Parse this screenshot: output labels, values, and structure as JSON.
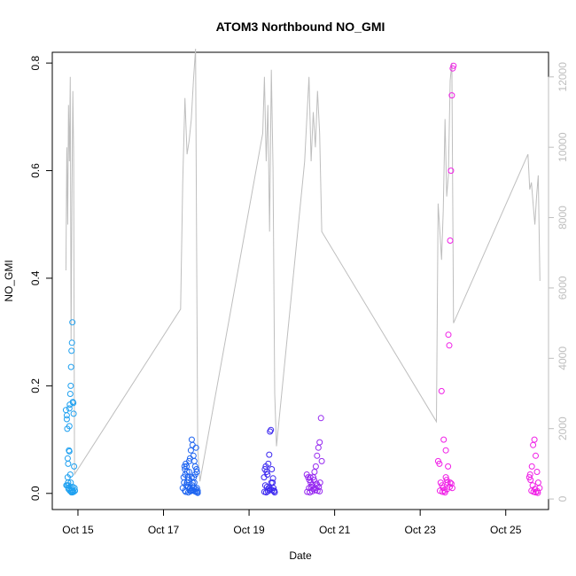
{
  "chart_data": {
    "type": "scatter",
    "title": "ATOM3 Northbound NO_GMI",
    "xlabel": "Date",
    "ylabel": "NO_GMI",
    "x_ticks": [
      "Oct 15",
      "Oct 17",
      "Oct 19",
      "Oct 21",
      "Oct 23",
      "Oct 25"
    ],
    "x_tick_days": [
      15,
      17,
      19,
      21,
      23,
      25
    ],
    "xlim": [
      14.4,
      26.0
    ],
    "ylim": [
      -0.03,
      0.82
    ],
    "y_ticks": [
      0.0,
      0.2,
      0.4,
      0.6,
      0.8
    ],
    "y_tick_labels": [
      "0.0",
      "0.2",
      "0.4",
      "0.6",
      "0.8"
    ],
    "y2lim": [
      -300,
      12700
    ],
    "y2_ticks": [
      0,
      2000,
      4000,
      6000,
      8000,
      10000,
      12000
    ],
    "y2_tick_labels": [
      "0",
      "2000",
      "4000",
      "6000",
      "8000",
      "10000",
      "12000"
    ],
    "colors": {
      "segment_start": "#1ea0f0",
      "segment_mid1": "#1e64f0",
      "segment_mid2": "#3c28f0",
      "segment_mid3": "#9628f0",
      "segment_end": "#f01ee6",
      "secondary_line": "#bebebe",
      "axis": "#000000"
    },
    "series": [
      {
        "color": "#1ea0f0",
        "x": [
          14.72,
          14.74,
          14.75,
          14.76,
          14.77,
          14.78,
          14.79,
          14.8,
          14.81,
          14.82,
          14.83,
          14.84,
          14.85,
          14.86,
          14.87,
          14.88,
          14.89,
          14.9,
          14.91,
          14.92,
          14.93,
          14.75,
          14.77,
          14.8,
          14.82,
          14.85,
          14.88,
          14.9,
          14.78,
          14.81,
          14.84,
          14.87,
          14.73,
          14.76,
          14.79,
          14.83,
          14.86,
          14.89,
          14.74,
          14.8,
          14.85
        ],
        "y": [
          0.155,
          0.145,
          0.12,
          0.065,
          0.02,
          0.015,
          0.08,
          0.125,
          0.165,
          0.185,
          0.2,
          0.235,
          0.265,
          0.28,
          0.318,
          0.17,
          0.168,
          0.148,
          0.05,
          0.01,
          0.005,
          0.015,
          0.055,
          0.078,
          0.035,
          0.01,
          0.012,
          0.003,
          0.008,
          0.005,
          0.004,
          0.002,
          0.015,
          0.03,
          0.01,
          0.02,
          0.006,
          0.004,
          0.138,
          0.158,
          0.002
        ]
      },
      {
        "color": "#1e64f0",
        "x": [
          17.45,
          17.48,
          17.5,
          17.52,
          17.55,
          17.57,
          17.6,
          17.62,
          17.64,
          17.66,
          17.68,
          17.7,
          17.72,
          17.74,
          17.76,
          17.78,
          17.8,
          17.5,
          17.53,
          17.56,
          17.59,
          17.62,
          17.65,
          17.68,
          17.71,
          17.74,
          17.77,
          17.47,
          17.51,
          17.55,
          17.58,
          17.61,
          17.64,
          17.67,
          17.7,
          17.73,
          17.76,
          17.79,
          17.49,
          17.54,
          17.6,
          17.66,
          17.72,
          17.78,
          17.52,
          17.58,
          17.63,
          17.69,
          17.75,
          17.8
        ],
        "y": [
          0.01,
          0.02,
          0.045,
          0.055,
          0.04,
          0.03,
          0.06,
          0.065,
          0.08,
          0.1,
          0.09,
          0.07,
          0.06,
          0.05,
          0.085,
          0.04,
          0.005,
          0.005,
          0.015,
          0.02,
          0.025,
          0.01,
          0.005,
          0.02,
          0.03,
          0.035,
          0.045,
          0.03,
          0.035,
          0.02,
          0.012,
          0.008,
          0.006,
          0.015,
          0.01,
          0.004,
          0.003,
          0.002,
          0.05,
          0.05,
          0.04,
          0.03,
          0.02,
          0.01,
          0.003,
          0.002,
          0.004,
          0.006,
          0.008,
          0.001
        ]
      },
      {
        "color": "#3c28f0",
        "x": [
          19.35,
          19.37,
          19.39,
          19.41,
          19.43,
          19.45,
          19.47,
          19.49,
          19.51,
          19.53,
          19.55,
          19.57,
          19.59,
          19.38,
          19.42,
          19.46,
          19.5,
          19.54,
          19.58,
          19.36,
          19.4,
          19.44,
          19.48,
          19.52,
          19.56,
          19.6
        ],
        "y": [
          0.03,
          0.045,
          0.05,
          0.04,
          0.035,
          0.055,
          0.072,
          0.115,
          0.118,
          0.045,
          0.02,
          0.01,
          0.005,
          0.015,
          0.012,
          0.01,
          0.008,
          0.006,
          0.004,
          0.003,
          0.002,
          0.004,
          0.006,
          0.02,
          0.028,
          0.002
        ]
      },
      {
        "color": "#9628f0",
        "x": [
          20.35,
          20.38,
          20.41,
          20.44,
          20.47,
          20.5,
          20.53,
          20.56,
          20.59,
          20.62,
          20.65,
          20.68,
          20.7,
          20.4,
          20.45,
          20.5,
          20.55,
          20.6,
          20.65,
          20.36,
          20.42,
          20.48,
          20.54,
          20.6,
          20.66,
          20.43,
          20.52,
          20.58,
          20.63
        ],
        "y": [
          0.035,
          0.03,
          0.025,
          0.02,
          0.015,
          0.03,
          0.04,
          0.05,
          0.07,
          0.085,
          0.095,
          0.14,
          0.06,
          0.01,
          0.012,
          0.008,
          0.006,
          0.005,
          0.004,
          0.003,
          0.002,
          0.004,
          0.01,
          0.015,
          0.02,
          0.03,
          0.025,
          0.018,
          0.012
        ]
      },
      {
        "color": "#f01ee6",
        "x": [
          23.42,
          23.45,
          23.48,
          23.51,
          23.54,
          23.57,
          23.6,
          23.62,
          23.64,
          23.66,
          23.68,
          23.7,
          23.72,
          23.74,
          23.76,
          23.78,
          23.5,
          23.55,
          23.6,
          23.65,
          23.7,
          23.75,
          23.46,
          23.52,
          23.58,
          23.63,
          23.69,
          23.73,
          25.55,
          25.58,
          25.61,
          25.64,
          25.67,
          25.7,
          25.73,
          25.76,
          25.79,
          25.6,
          25.65,
          25.7,
          25.75,
          25.57,
          25.63,
          25.68,
          25.74
        ],
        "y": [
          0.06,
          0.055,
          0.02,
          0.015,
          0.01,
          0.005,
          0.03,
          0.025,
          0.02,
          0.295,
          0.275,
          0.47,
          0.6,
          0.74,
          0.79,
          0.795,
          0.19,
          0.1,
          0.08,
          0.05,
          0.02,
          0.01,
          0.005,
          0.003,
          0.002,
          0.008,
          0.012,
          0.018,
          0.03,
          0.025,
          0.05,
          0.09,
          0.1,
          0.07,
          0.04,
          0.02,
          0.01,
          0.005,
          0.003,
          0.002,
          0.001,
          0.035,
          0.015,
          0.008,
          0.004
        ]
      }
    ],
    "secondary_series": {
      "color": "#bebebe",
      "x": [
        14.72,
        14.74,
        14.76,
        14.78,
        14.8,
        14.82,
        14.84,
        14.86,
        14.88,
        14.9,
        14.92,
        17.4,
        17.45,
        17.5,
        17.55,
        17.6,
        17.65,
        17.7,
        17.75,
        17.8,
        17.85,
        19.32,
        19.36,
        19.4,
        19.44,
        19.48,
        19.52,
        19.56,
        19.6,
        19.64,
        20.3,
        20.35,
        20.4,
        20.45,
        20.5,
        20.55,
        20.6,
        20.65,
        20.7,
        23.38,
        23.42,
        23.46,
        23.5,
        23.54,
        23.58,
        23.62,
        23.66,
        23.7,
        23.74,
        23.78,
        25.52,
        25.56,
        25.6,
        25.64,
        25.68,
        25.72,
        25.76,
        25.8
      ],
      "y": [
        6500,
        10000,
        7800,
        11200,
        9600,
        12000,
        4500,
        8800,
        11600,
        9800,
        700,
        5400,
        9000,
        11400,
        9800,
        10200,
        10800,
        11900,
        12800,
        1400,
        500,
        10400,
        12000,
        9600,
        11200,
        7600,
        12200,
        9400,
        3000,
        1500,
        9600,
        10800,
        12000,
        9600,
        11000,
        10000,
        11600,
        10400,
        7600,
        2200,
        8400,
        7600,
        6800,
        8200,
        10800,
        8600,
        9200,
        11900,
        12400,
        5000,
        9800,
        8800,
        9000,
        8400,
        7800,
        8600,
        9200,
        6200
      ]
    }
  }
}
